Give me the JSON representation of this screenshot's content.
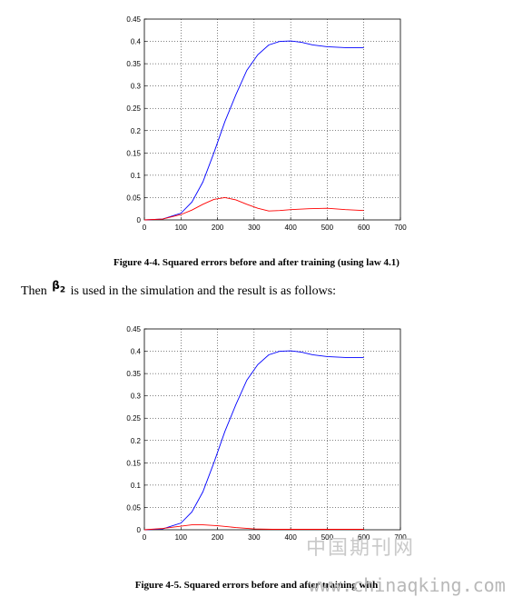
{
  "figure1": {
    "caption": "Figure 4-4. Squared errors before and after training (using law 4.1)"
  },
  "paragraph": {
    "before": "Then",
    "symbol": "β",
    "subscript": "2",
    "after": "is used in the simulation and the result is as follows:"
  },
  "figure2": {
    "caption": "Figure 4-5. Squared errors before and after training with"
  },
  "watermark": {
    "cn": "中国期刊网",
    "url": "www.chinaqking.com"
  },
  "chart_data": [
    {
      "type": "line",
      "title": "",
      "xlabel": "",
      "ylabel": "",
      "xlim": [
        0,
        700
      ],
      "ylim": [
        0,
        0.45
      ],
      "xticks": [
        "0",
        "100",
        "200",
        "300",
        "400",
        "500",
        "600",
        "700"
      ],
      "yticks": [
        "0",
        "0.05",
        "0.1",
        "0.15",
        "0.2",
        "0.25",
        "0.3",
        "0.35",
        "0.4",
        "0.45"
      ],
      "grid": true,
      "series": [
        {
          "color": "#0000ff",
          "x": [
            0,
            50,
            100,
            130,
            160,
            190,
            220,
            250,
            280,
            310,
            340,
            370,
            400,
            430,
            460,
            500,
            550,
            600
          ],
          "y": [
            0,
            0.002,
            0.015,
            0.04,
            0.085,
            0.15,
            0.22,
            0.28,
            0.335,
            0.37,
            0.392,
            0.4,
            0.401,
            0.398,
            0.392,
            0.388,
            0.386,
            0.386
          ]
        },
        {
          "color": "#ff0000",
          "x": [
            0,
            50,
            100,
            130,
            160,
            190,
            220,
            250,
            280,
            310,
            340,
            370,
            400,
            450,
            500,
            550,
            600
          ],
          "y": [
            0,
            0.002,
            0.012,
            0.022,
            0.035,
            0.046,
            0.05,
            0.045,
            0.035,
            0.026,
            0.02,
            0.021,
            0.023,
            0.025,
            0.026,
            0.023,
            0.021
          ]
        }
      ]
    },
    {
      "type": "line",
      "title": "",
      "xlabel": "",
      "ylabel": "",
      "xlim": [
        0,
        700
      ],
      "ylim": [
        0,
        0.45
      ],
      "xticks": [
        "0",
        "100",
        "200",
        "300",
        "400",
        "500",
        "600",
        "700"
      ],
      "yticks": [
        "0",
        "0.05",
        "0.1",
        "0.15",
        "0.2",
        "0.25",
        "0.3",
        "0.35",
        "0.4",
        "0.45"
      ],
      "grid": true,
      "series": [
        {
          "color": "#0000ff",
          "x": [
            0,
            50,
            100,
            130,
            160,
            190,
            220,
            250,
            280,
            310,
            340,
            370,
            400,
            430,
            460,
            500,
            550,
            600
          ],
          "y": [
            0,
            0.002,
            0.015,
            0.04,
            0.085,
            0.15,
            0.22,
            0.28,
            0.335,
            0.37,
            0.392,
            0.4,
            0.401,
            0.398,
            0.392,
            0.388,
            0.386,
            0.386
          ]
        },
        {
          "color": "#ff0000",
          "x": [
            0,
            50,
            100,
            130,
            160,
            200,
            250,
            300,
            350,
            400,
            450,
            500,
            550,
            600
          ],
          "y": [
            0,
            0.003,
            0.008,
            0.011,
            0.011,
            0.009,
            0.005,
            0.002,
            0.001,
            0.001,
            0.001,
            0.001,
            0.001,
            0.001
          ]
        }
      ]
    }
  ]
}
